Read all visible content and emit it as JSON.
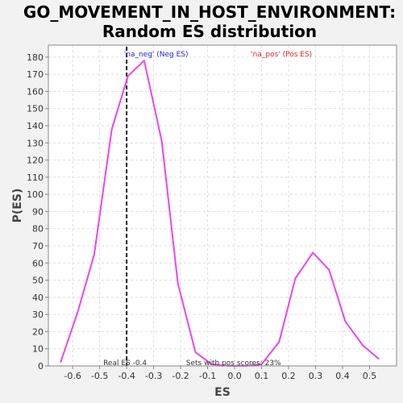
{
  "chart_data": {
    "type": "line",
    "title": [
      "GO_MOVEMENT_IN_HOST_ENVIRONMENT:",
      "Random ES distribution"
    ],
    "xlabel": "ES",
    "ylabel": "P(ES)",
    "xlim": [
      -0.69,
      0.6
    ],
    "ylim": [
      0,
      187
    ],
    "xticks": [
      -0.6,
      -0.5,
      -0.4,
      -0.3,
      -0.2,
      -0.1,
      0.0,
      0.1,
      0.2,
      0.3,
      0.4,
      0.5
    ],
    "xtick_labels": [
      "-0.6",
      "-0.5",
      "-0.4",
      "-0.3",
      "-0.2",
      "-0.1",
      "0.0",
      "0.1",
      "0.2",
      "0.3",
      "0.4",
      "0.5"
    ],
    "yticks": [
      0,
      10,
      20,
      30,
      40,
      50,
      60,
      70,
      80,
      90,
      100,
      110,
      120,
      130,
      140,
      150,
      160,
      170,
      180
    ],
    "grid": true,
    "series": [
      {
        "color": "#ee44ee",
        "x": [
          -0.645,
          -0.58,
          -0.52,
          -0.455,
          -0.395,
          -0.335,
          -0.27,
          -0.21,
          -0.145,
          -0.085,
          -0.02,
          0.04,
          0.1,
          0.165,
          0.225,
          0.29,
          0.35,
          0.41,
          0.475,
          0.535
        ],
        "y": [
          2,
          32,
          65,
          138,
          169,
          178,
          131,
          48,
          8,
          1,
          0,
          0,
          1,
          14,
          51,
          66,
          56,
          26,
          12,
          4
        ]
      }
    ],
    "real_es": {
      "x": -0.4,
      "label": "Real ES -0.4"
    },
    "annotations": {
      "neg": {
        "text": "'na_neg' (Neg ES)",
        "color": "#2222dd",
        "x": -0.41
      },
      "pos": {
        "text": "'na_pos' (Pos ES)",
        "color": "#ee2222",
        "x": 0.06
      },
      "sets_pos": {
        "text": "Sets with pos scores: 23%",
        "x": -0.18
      }
    }
  }
}
